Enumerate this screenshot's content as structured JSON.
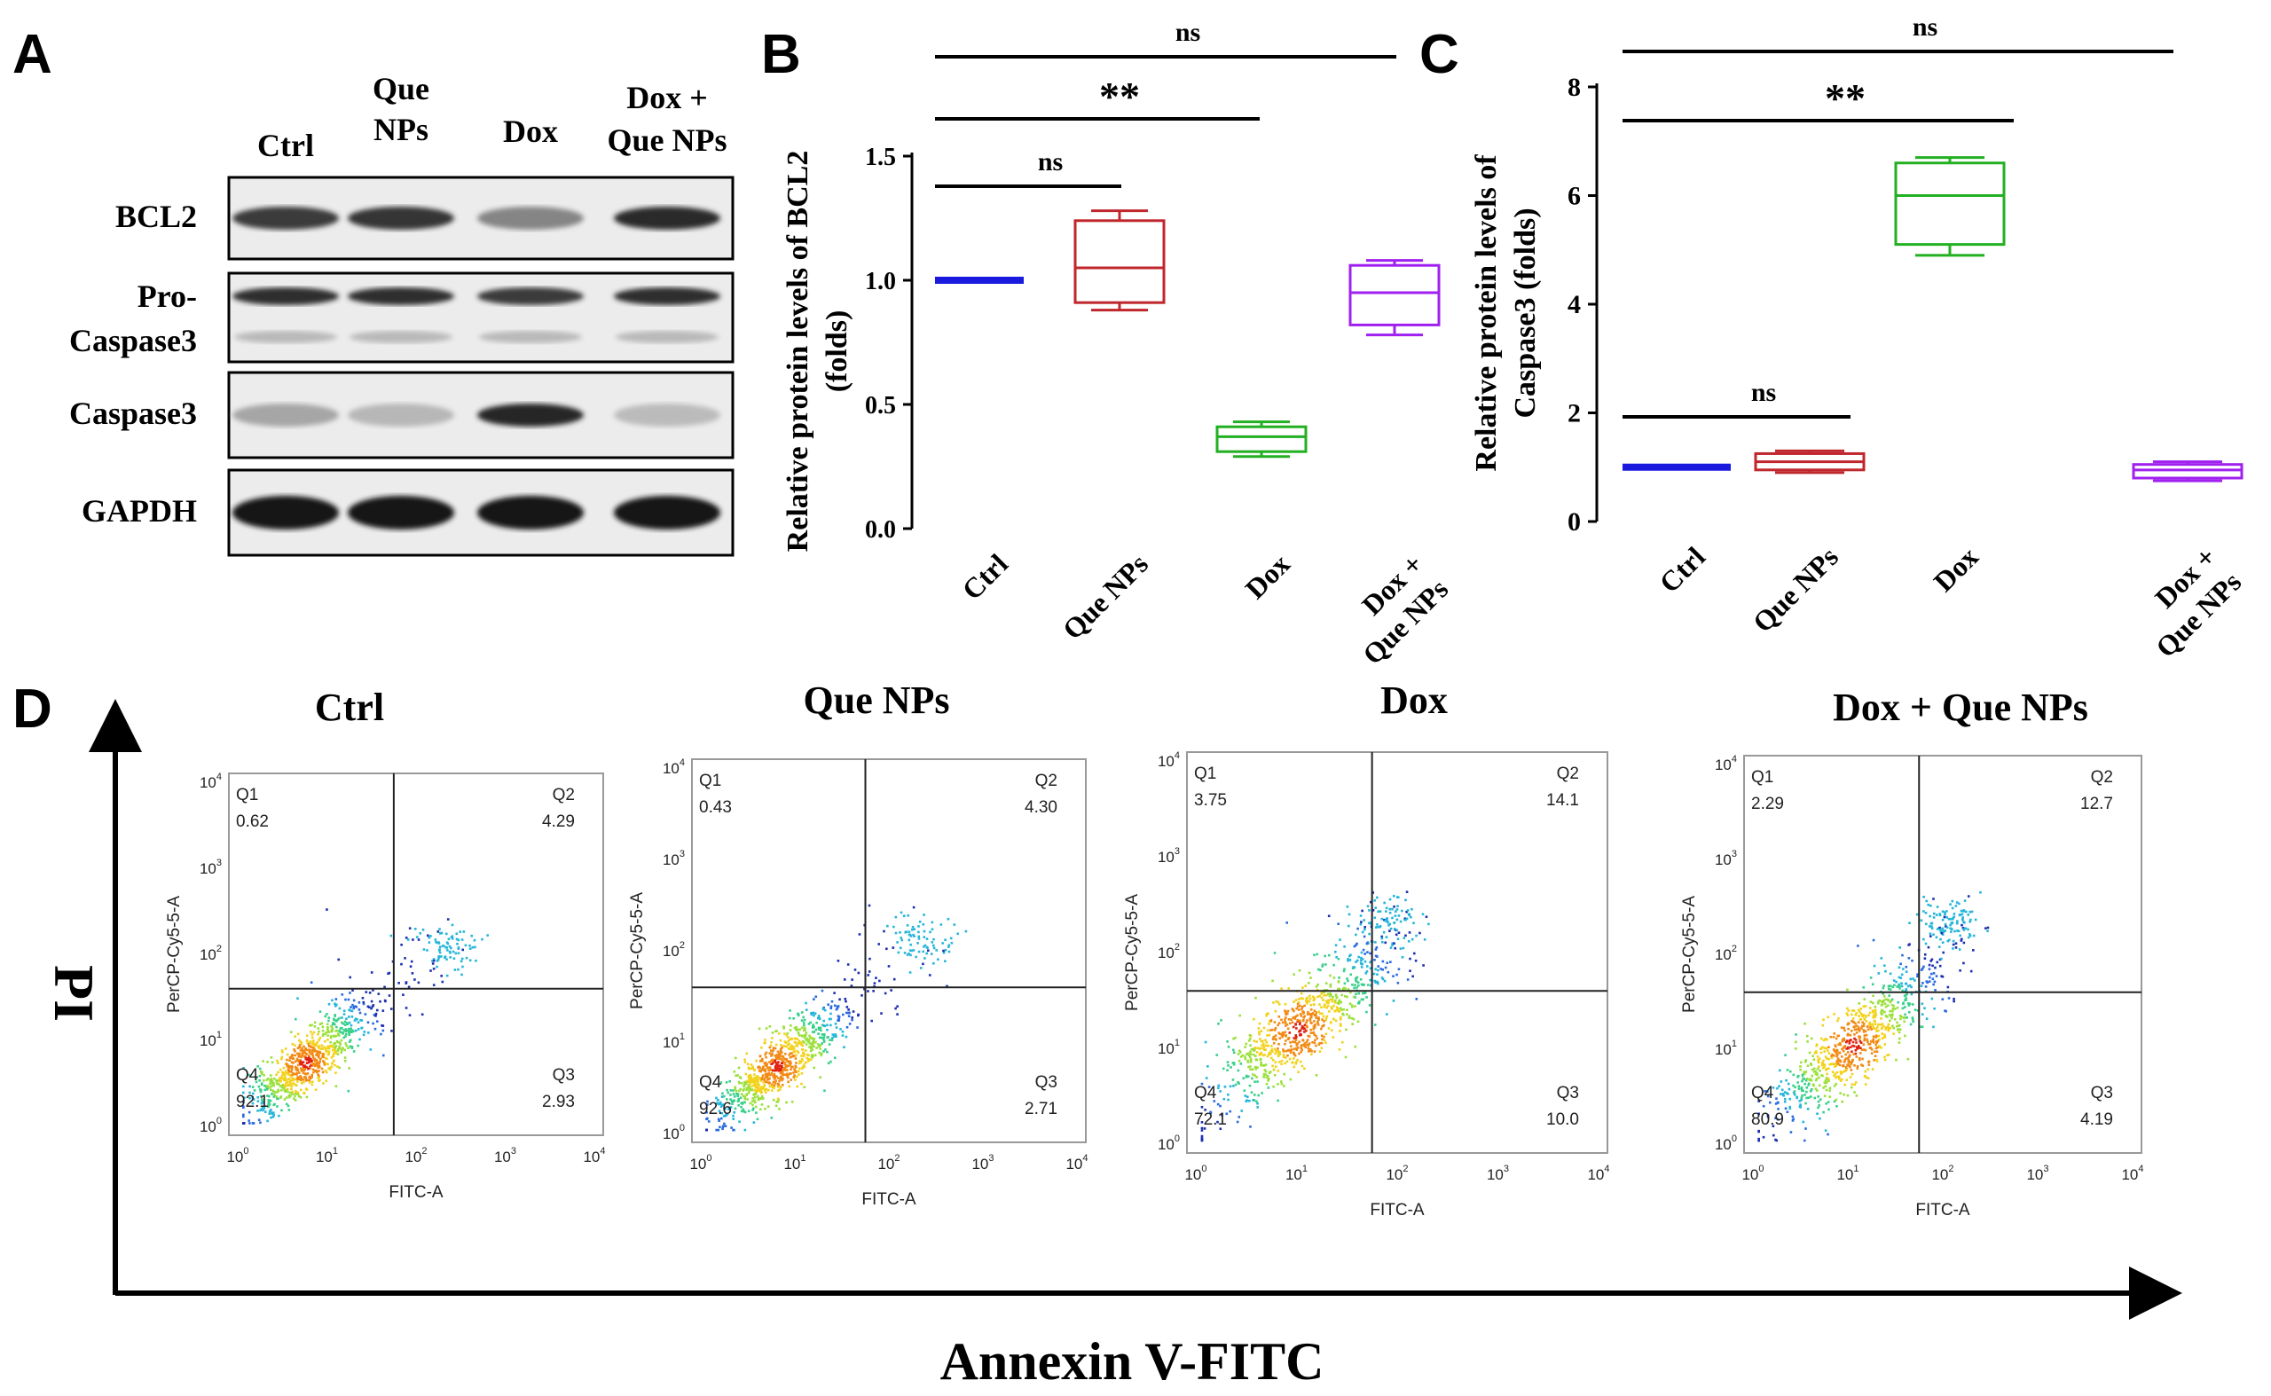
{
  "panels": {
    "A": "A",
    "B": "B",
    "C": "C",
    "D": "D"
  },
  "western_blot": {
    "lanes": [
      {
        "line1": "Ctrl",
        "line2": ""
      },
      {
        "line1": "Que",
        "line2": "NPs"
      },
      {
        "line1": "Dox",
        "line2": ""
      },
      {
        "line1": "Dox +",
        "line2": "Que NPs"
      }
    ],
    "proteins": [
      {
        "line1": "BCL2",
        "line2": ""
      },
      {
        "line1": "Pro-",
        "line2": "Caspase3"
      },
      {
        "line1": "Caspase3",
        "line2": ""
      },
      {
        "line1": "GAPDH",
        "line2": ""
      }
    ],
    "band_intensity": [
      [
        0.8,
        0.82,
        0.45,
        0.88
      ],
      [
        0.85,
        0.85,
        0.8,
        0.86
      ],
      [
        0.3,
        0.22,
        0.9,
        0.2
      ],
      [
        0.98,
        0.98,
        0.98,
        0.98
      ]
    ]
  },
  "chart_data": [
    {
      "type": "box",
      "ylabel": "Relative protein levels of BCL2 (folds)",
      "ylabel_line1": "Relative protein levels of BCL2",
      "ylabel_line2": "(folds)",
      "ylim": [
        0,
        1.5
      ],
      "yticks": [
        "0.0",
        "0.5",
        "1.0",
        "1.5"
      ],
      "ytick_values": [
        0.0,
        0.5,
        1.0,
        1.5
      ],
      "categories": [
        {
          "line1": "Ctrl",
          "line2": ""
        },
        {
          "line1": "Que NPs",
          "line2": ""
        },
        {
          "line1": "Dox",
          "line2": ""
        },
        {
          "line1": "Dox +",
          "line2": "Que NPs"
        }
      ],
      "boxes": [
        {
          "min": 1.0,
          "q1": 1.0,
          "median": 1.0,
          "q3": 1.0,
          "max": 1.0,
          "color": "#1a1adf"
        },
        {
          "min": 0.88,
          "q1": 0.91,
          "median": 1.05,
          "q3": 1.24,
          "max": 1.28,
          "color": "#c0272d"
        },
        {
          "min": 0.29,
          "q1": 0.31,
          "median": 0.37,
          "q3": 0.41,
          "max": 0.43,
          "color": "#22b022"
        },
        {
          "min": 0.78,
          "q1": 0.82,
          "median": 0.95,
          "q3": 1.06,
          "max": 1.08,
          "color": "#a020f0"
        }
      ],
      "significance": [
        {
          "from": 0,
          "to": 1,
          "label": "ns"
        },
        {
          "from": 0,
          "to": 2,
          "label": "**"
        },
        {
          "from": 0,
          "to": 3,
          "label": "ns"
        }
      ]
    },
    {
      "type": "box",
      "ylabel": "Relative protein levels of Caspase3 (folds)",
      "ylabel_line1": "Relative protein levels of",
      "ylabel_line2": "Caspase3 (folds)",
      "ylim": [
        0,
        8
      ],
      "yticks": [
        "0",
        "2",
        "4",
        "6",
        "8"
      ],
      "ytick_values": [
        0,
        2,
        4,
        6,
        8
      ],
      "categories": [
        {
          "line1": "Ctrl",
          "line2": ""
        },
        {
          "line1": "Que NPs",
          "line2": ""
        },
        {
          "line1": "Dox",
          "line2": ""
        },
        {
          "line1": "Dox +",
          "line2": "Que NPs"
        }
      ],
      "boxes": [
        {
          "min": 1.0,
          "q1": 1.0,
          "median": 1.0,
          "q3": 1.0,
          "max": 1.0,
          "color": "#1a1adf"
        },
        {
          "min": 0.9,
          "q1": 0.95,
          "median": 1.1,
          "q3": 1.25,
          "max": 1.3,
          "color": "#c0272d"
        },
        {
          "min": 4.9,
          "q1": 5.1,
          "median": 6.0,
          "q3": 6.6,
          "max": 6.7,
          "color": "#22b022"
        },
        {
          "min": 0.75,
          "q1": 0.8,
          "median": 0.95,
          "q3": 1.05,
          "max": 1.1,
          "color": "#a020f0"
        }
      ],
      "significance": [
        {
          "from": 0,
          "to": 1,
          "label": "ns"
        },
        {
          "from": 0,
          "to": 2,
          "label": "**"
        },
        {
          "from": 0,
          "to": 3,
          "label": "ns"
        }
      ]
    },
    {
      "type": "flow-cytometry",
      "x_title": "Annexin V-FITC",
      "y_title": "PI",
      "axis_x_label": "FITC-A",
      "axis_y_label": "PerCP-Cy5-5-A",
      "tick_labels": [
        "10",
        "10",
        "10",
        "10",
        "10"
      ],
      "tick_exponents": [
        "0",
        "1",
        "2",
        "3",
        "4"
      ],
      "gate": [
        1.75,
        1.6
      ],
      "plots": [
        {
          "title": "Ctrl",
          "q1_label": "Q1",
          "q1": "0.62",
          "q2_label": "Q2",
          "q2": "4.29",
          "q3_label": "Q3",
          "q3": "2.93",
          "q4_label": "Q4",
          "q4": "92.1",
          "cluster": [
            0.75,
            0.75
          ],
          "late": [
            2.3,
            2.1
          ],
          "spread": 0.35
        },
        {
          "title": "Que NPs",
          "q1_label": "Q1",
          "q1": "0.43",
          "q2_label": "Q2",
          "q2": "4.30",
          "q3_label": "Q3",
          "q3": "2.71",
          "q4_label": "Q4",
          "q4": "92.6",
          "cluster": [
            0.8,
            0.75
          ],
          "late": [
            2.3,
            2.1
          ],
          "spread": 0.35
        },
        {
          "title": "Dox",
          "q1_label": "Q1",
          "q1": "3.75",
          "q2_label": "Q2",
          "q2": "14.1",
          "q3_label": "Q3",
          "q3": "10.0",
          "q4_label": "Q4",
          "q4": "72.1",
          "cluster": [
            1.0,
            1.2
          ],
          "late": [
            1.9,
            2.35
          ],
          "spread": 0.45
        },
        {
          "title": "Dox + Que NPs",
          "q1_label": "Q1",
          "q1": "2.29",
          "q2_label": "Q2",
          "q2": "12.7",
          "q3_label": "Q3",
          "q3": "4.19",
          "q4_label": "Q4",
          "q4": "80.9",
          "cluster": [
            1.05,
            1.05
          ],
          "late": [
            2.1,
            2.35
          ],
          "spread": 0.42
        }
      ]
    }
  ]
}
